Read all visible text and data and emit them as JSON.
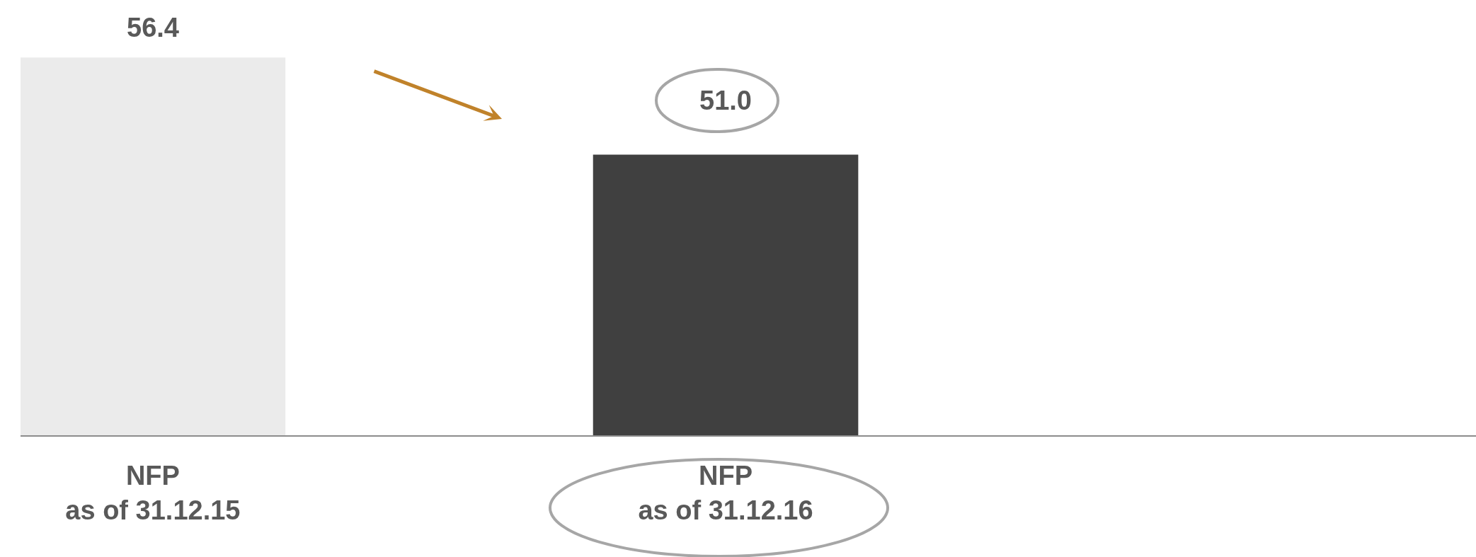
{
  "chart_data": {
    "type": "bar",
    "categories": [
      "NFP\nas of 31.12.15",
      "NFP\nas of 31.12.16"
    ],
    "values": [
      56.4,
      51.0
    ],
    "colors": [
      "#ebebeb",
      "#404040"
    ],
    "value_labels": [
      "56.4",
      "51.0"
    ],
    "ylim": [
      35.4,
      59.6
    ],
    "tick_labels": "x"
  }
}
